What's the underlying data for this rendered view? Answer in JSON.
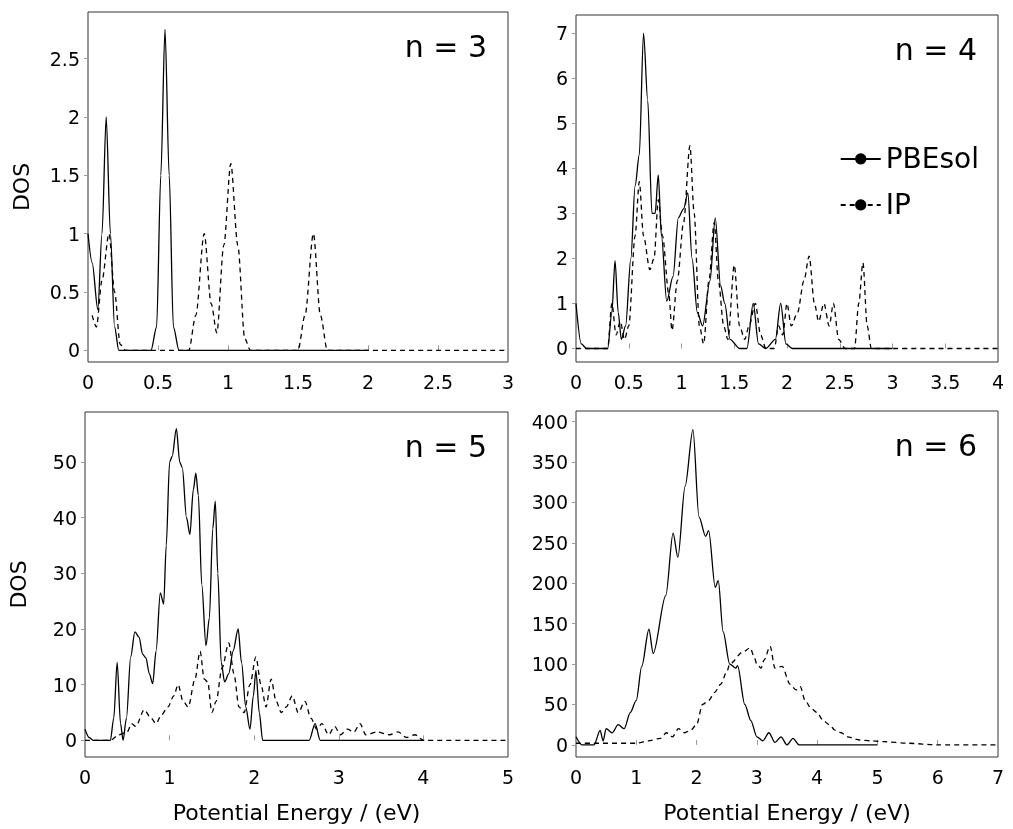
{
  "chart_data": [
    {
      "type": "line",
      "title": "n = 3",
      "ylabel": "DOS",
      "xlim": [
        0,
        3
      ],
      "xticks": [
        0,
        0.5,
        1,
        1.5,
        2,
        2.5,
        3
      ],
      "ylim": [
        -0.1,
        2.9
      ],
      "yticks": [
        0,
        0.5,
        1,
        1.5,
        2,
        2.5
      ],
      "marker": "none",
      "series": [
        {
          "color": "#000000",
          "line_style": "solid",
          "x": [
            0,
            0.03,
            0.07,
            0.1,
            0.13,
            0.16,
            0.19,
            0.22,
            0.45,
            0.49,
            0.52,
            0.55,
            0.58,
            0.61,
            0.65,
            2.0
          ],
          "values": [
            1.0,
            0.75,
            0.35,
            1.0,
            2.0,
            1.0,
            0.2,
            0.0,
            0.0,
            0.2,
            1.5,
            2.75,
            1.5,
            0.2,
            0.0,
            0.0
          ]
        },
        {
          "color": "#000000",
          "line_style": "dashed",
          "x": [
            0.03,
            0.06,
            0.1,
            0.15,
            0.19,
            0.23,
            0.27,
            0.72,
            0.77,
            0.83,
            0.88,
            0.92,
            0.97,
            1.02,
            1.07,
            1.12,
            1.16,
            1.5,
            1.55,
            1.61,
            1.66,
            1.71,
            3.0
          ],
          "values": [
            0.3,
            0.2,
            0.6,
            1.0,
            0.5,
            0.05,
            0.0,
            0.0,
            0.3,
            1.0,
            0.4,
            0.15,
            0.9,
            1.6,
            0.9,
            0.1,
            0.0,
            0.0,
            0.3,
            1.0,
            0.3,
            0.0,
            0.0
          ]
        }
      ]
    },
    {
      "type": "line",
      "title": "n = 4",
      "xlim": [
        0,
        4
      ],
      "xticks": [
        0,
        0.5,
        1,
        1.5,
        2,
        2.5,
        3,
        3.5,
        4
      ],
      "ylim": [
        -0.3,
        7.4
      ],
      "yticks": [
        0,
        1,
        2,
        3,
        4,
        5,
        6,
        7
      ],
      "marker": "none",
      "legend": "right",
      "series": [
        {
          "name": "PBEsol",
          "color": "#000000",
          "line_style": "solid",
          "x": [
            0,
            0.05,
            0.1,
            0.3,
            0.34,
            0.37,
            0.4,
            0.43,
            0.47,
            0.52,
            0.56,
            0.6,
            0.64,
            0.68,
            0.72,
            0.75,
            0.78,
            0.81,
            0.86,
            0.92,
            0.97,
            1.02,
            1.06,
            1.1,
            1.15,
            1.2,
            1.27,
            1.32,
            1.37,
            1.41,
            1.46,
            1.55,
            1.62,
            1.68,
            1.73,
            1.8,
            1.89,
            1.94,
            1.99,
            2.05,
            3.0
          ],
          "values": [
            1.0,
            0.1,
            0.0,
            0.0,
            0.8,
            1.95,
            0.8,
            0.2,
            0.5,
            2.0,
            3.6,
            4.3,
            7.0,
            5.5,
            3.0,
            3.0,
            3.85,
            2.5,
            1.05,
            1.6,
            2.9,
            3.1,
            3.45,
            2.0,
            0.8,
            0.5,
            1.5,
            2.9,
            1.4,
            1.0,
            0.2,
            0.0,
            0.0,
            1.0,
            0.1,
            0.0,
            0.2,
            1.0,
            0.1,
            0.0,
            0.0
          ]
        },
        {
          "name": "IP",
          "color": "#000000",
          "line_style": "dashed",
          "x": [
            0,
            0.3,
            0.34,
            0.38,
            0.42,
            0.46,
            0.5,
            0.56,
            0.6,
            0.64,
            0.7,
            0.74,
            0.78,
            0.82,
            0.88,
            0.91,
            0.96,
            1.02,
            1.08,
            1.12,
            1.17,
            1.21,
            1.26,
            1.31,
            1.35,
            1.4,
            1.44,
            1.5,
            1.55,
            1.6,
            1.64,
            1.7,
            1.75,
            1.8,
            1.88,
            1.92,
            1.96,
            2.0,
            2.04,
            2.1,
            2.16,
            2.21,
            2.26,
            2.3,
            2.35,
            2.4,
            2.44,
            2.49,
            2.55,
            2.64,
            2.68,
            2.72,
            2.76,
            2.8,
            4.0
          ],
          "values": [
            0.0,
            0.0,
            1.0,
            0.3,
            0.6,
            0.2,
            0.5,
            2.5,
            3.7,
            2.5,
            1.75,
            2.0,
            3.3,
            2.5,
            1.2,
            0.4,
            1.5,
            2.8,
            4.5,
            3.0,
            0.5,
            0.1,
            1.5,
            2.8,
            1.5,
            0.5,
            0.2,
            1.85,
            0.5,
            0.2,
            0.5,
            1.0,
            0.3,
            0.0,
            0.0,
            0.5,
            0.3,
            1.0,
            0.5,
            0.8,
            1.5,
            2.05,
            1.0,
            0.6,
            1.0,
            0.5,
            1.0,
            0.2,
            0.0,
            0.0,
            1.0,
            1.9,
            0.5,
            0.0,
            0.0
          ]
        }
      ]
    },
    {
      "type": "line",
      "title": "n = 5",
      "xlabel": "Potential Energy / (eV)",
      "ylabel": "DOS",
      "xlim": [
        0,
        5
      ],
      "xticks": [
        0,
        1,
        2,
        3,
        4,
        5
      ],
      "ylim": [
        -3,
        59
      ],
      "yticks": [
        0,
        10,
        20,
        30,
        40,
        50
      ],
      "marker": "none",
      "series": [
        {
          "color": "#000000",
          "line_style": "solid",
          "x": [
            0,
            0.05,
            0.1,
            0.3,
            0.34,
            0.38,
            0.42,
            0.45,
            0.49,
            0.54,
            0.59,
            0.64,
            0.68,
            0.72,
            0.76,
            0.8,
            0.84,
            0.89,
            0.93,
            0.96,
            1.0,
            1.03,
            1.08,
            1.12,
            1.15,
            1.2,
            1.24,
            1.28,
            1.31,
            1.34,
            1.38,
            1.43,
            1.47,
            1.51,
            1.54,
            1.57,
            1.61,
            1.65,
            1.7,
            1.75,
            1.81,
            1.85,
            1.9,
            1.95,
            1.99,
            2.02,
            2.06,
            2.1,
            2.65,
            2.72,
            2.78,
            4.0
          ],
          "values": [
            2,
            0.5,
            0,
            0,
            4,
            14,
            3,
            0,
            4,
            15,
            19.5,
            18.5,
            15.5,
            14.8,
            12,
            10.2,
            16,
            26.5,
            24.5,
            35,
            50,
            51,
            56,
            50,
            49,
            40,
            37,
            45,
            48,
            44,
            28,
            17,
            22,
            38,
            43,
            30,
            14,
            10.5,
            12,
            16,
            20,
            14,
            6,
            2,
            8,
            12.5,
            5,
            0,
            0,
            3,
            0,
            0
          ]
        },
        {
          "color": "#000000",
          "line_style": "dashed",
          "x": [
            0,
            0.3,
            0.4,
            0.5,
            0.55,
            0.6,
            0.7,
            0.78,
            0.84,
            0.9,
            0.98,
            1.05,
            1.1,
            1.16,
            1.22,
            1.3,
            1.36,
            1.41,
            1.45,
            1.5,
            1.55,
            1.62,
            1.7,
            1.76,
            1.82,
            1.88,
            1.95,
            2.02,
            2.08,
            2.14,
            2.2,
            2.26,
            2.32,
            2.38,
            2.45,
            2.52,
            2.6,
            2.67,
            2.74,
            2.8,
            2.88,
            2.95,
            3.02,
            3.1,
            3.18,
            3.25,
            3.32,
            3.45,
            3.6,
            3.7,
            3.8,
            3.9,
            4.0,
            5.0
          ],
          "values": [
            0,
            0,
            1,
            1.5,
            3,
            2.5,
            5.5,
            4,
            3,
            4.5,
            6,
            8,
            10,
            7,
            6,
            11,
            16,
            11,
            10.5,
            5,
            7,
            13,
            17.5,
            12,
            6,
            5,
            10,
            15,
            10,
            6,
            11,
            7,
            5,
            6,
            8,
            5,
            7,
            4,
            2,
            3,
            1,
            2.5,
            1,
            2,
            1.5,
            3,
            1,
            1.5,
            1,
            1.5,
            0.5,
            1,
            0,
            0
          ]
        }
      ]
    },
    {
      "type": "line",
      "title": "n = 6",
      "xlabel": "Potential Energy / (eV)",
      "xlim": [
        0,
        7
      ],
      "xticks": [
        0,
        1,
        2,
        3,
        4,
        5,
        6,
        7
      ],
      "ylim": [
        -15,
        413
      ],
      "yticks": [
        0,
        50,
        100,
        150,
        200,
        250,
        300,
        350,
        400
      ],
      "marker": "none",
      "series": [
        {
          "color": "#000000",
          "line_style": "solid",
          "x": [
            0,
            0.1,
            0.3,
            0.4,
            0.45,
            0.5,
            0.6,
            0.7,
            0.8,
            0.9,
            1.0,
            1.09,
            1.21,
            1.28,
            1.49,
            1.61,
            1.69,
            1.81,
            1.94,
            2.04,
            2.15,
            2.2,
            2.31,
            2.36,
            2.44,
            2.55,
            2.65,
            2.68,
            2.8,
            2.9,
            3.0,
            3.1,
            3.2,
            3.3,
            3.4,
            3.5,
            3.6,
            3.7,
            5.0
          ],
          "values": [
            10,
            0,
            0,
            18,
            5,
            20,
            15,
            25,
            20,
            40,
            55,
            97,
            143,
            113,
            185,
            262,
            232,
            320,
            390,
            282,
            258,
            265,
            195,
            203,
            140,
            100,
            95,
            98,
            50,
            30,
            10,
            5,
            15,
            3,
            10,
            0,
            8,
            0,
            0
          ]
        },
        {
          "color": "#000000",
          "line_style": "dashed",
          "x": [
            0,
            1.0,
            1.2,
            1.4,
            1.5,
            1.6,
            1.7,
            1.8,
            1.9,
            2.0,
            2.1,
            2.2,
            2.3,
            2.4,
            2.5,
            2.55,
            2.77,
            2.89,
            2.95,
            3.0,
            3.07,
            3.12,
            3.22,
            3.3,
            3.42,
            3.55,
            3.65,
            3.72,
            3.8,
            3.9,
            4.0,
            4.1,
            4.2,
            4.3,
            4.4,
            4.5,
            4.7,
            4.9,
            5.1,
            5.5,
            6.0,
            7.0
          ],
          "values": [
            2,
            2,
            5,
            8,
            15,
            10,
            20,
            15,
            18,
            25,
            50,
            55,
            65,
            75,
            90,
            100,
            115,
            120,
            110,
            100,
            95,
            105,
            122,
            95,
            97,
            75,
            68,
            72,
            55,
            45,
            40,
            30,
            25,
            18,
            15,
            10,
            6,
            5,
            4,
            2,
            0,
            0
          ]
        }
      ]
    }
  ]
}
